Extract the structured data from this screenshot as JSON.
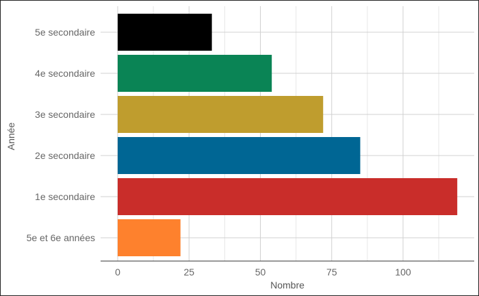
{
  "chart_data": {
    "type": "bar",
    "orientation": "horizontal",
    "title": "",
    "xlabel": "Nombre",
    "ylabel": "Année",
    "categories": [
      "5e et 6e années",
      "1e secondaire",
      "2e secondaire",
      "3e secondaire",
      "4e secondaire",
      "5e secondaire"
    ],
    "values": [
      22,
      119,
      85,
      72,
      54,
      33
    ],
    "colors": [
      "#fe812d",
      "#c92d2a",
      "#006694",
      "#bf9d2e",
      "#0a8455",
      "#000000"
    ],
    "xlim": [
      0,
      125
    ],
    "x_ticks": [
      0,
      25,
      50,
      75,
      100
    ],
    "x_tick_labels": [
      "0",
      "25",
      "50",
      "75",
      "100"
    ],
    "grid": true,
    "legend": "none"
  }
}
